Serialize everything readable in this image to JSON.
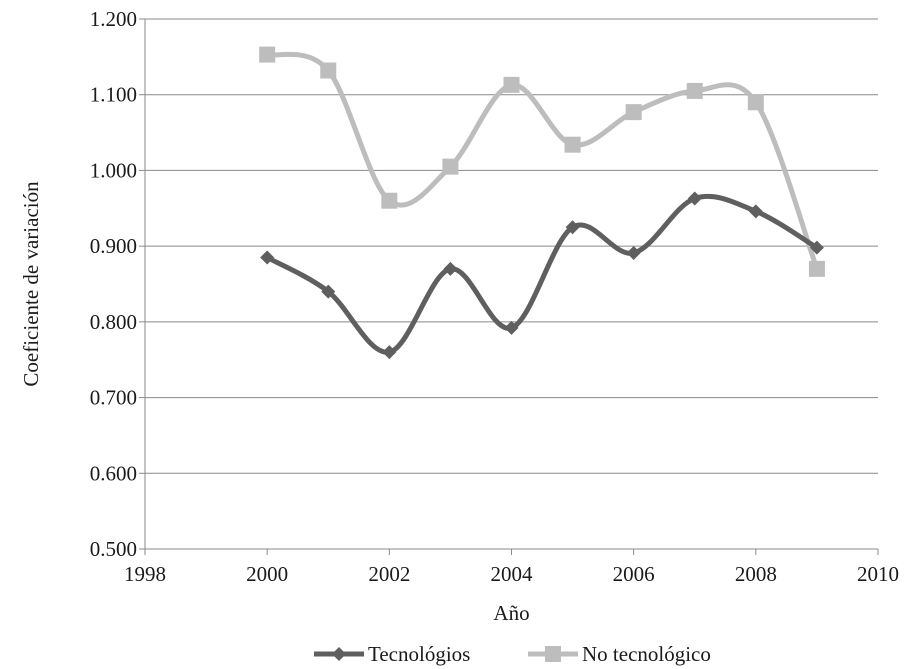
{
  "chart_data": {
    "type": "line",
    "smoothed": true,
    "xlabel": "Año",
    "ylabel": "Coeficiente de variación",
    "xlim": [
      1998,
      2010
    ],
    "ylim": [
      0.5,
      1.2
    ],
    "x_ticks": [
      "1998",
      "2000",
      "2002",
      "2004",
      "2006",
      "2008",
      "2010"
    ],
    "y_ticks": [
      "0.500",
      "0.600",
      "0.700",
      "0.800",
      "0.900",
      "1.000",
      "1.100",
      "1.200"
    ],
    "grid": "horizontal",
    "legend_position": "bottom",
    "x": [
      2000,
      2001,
      2002,
      2003,
      2004,
      2005,
      2006,
      2007,
      2008,
      2009
    ],
    "series": [
      {
        "name": "Tecnológios",
        "color": "#5f5f5f",
        "marker": "diamond",
        "values": [
          0.885,
          0.84,
          0.76,
          0.87,
          0.792,
          0.925,
          0.891,
          0.963,
          0.946,
          0.898
        ]
      },
      {
        "name": "No tecnológico",
        "color": "#bdbdbd",
        "marker": "square",
        "values": [
          1.153,
          1.132,
          0.96,
          1.005,
          1.113,
          1.034,
          1.077,
          1.105,
          1.09,
          0.87
        ]
      }
    ]
  }
}
